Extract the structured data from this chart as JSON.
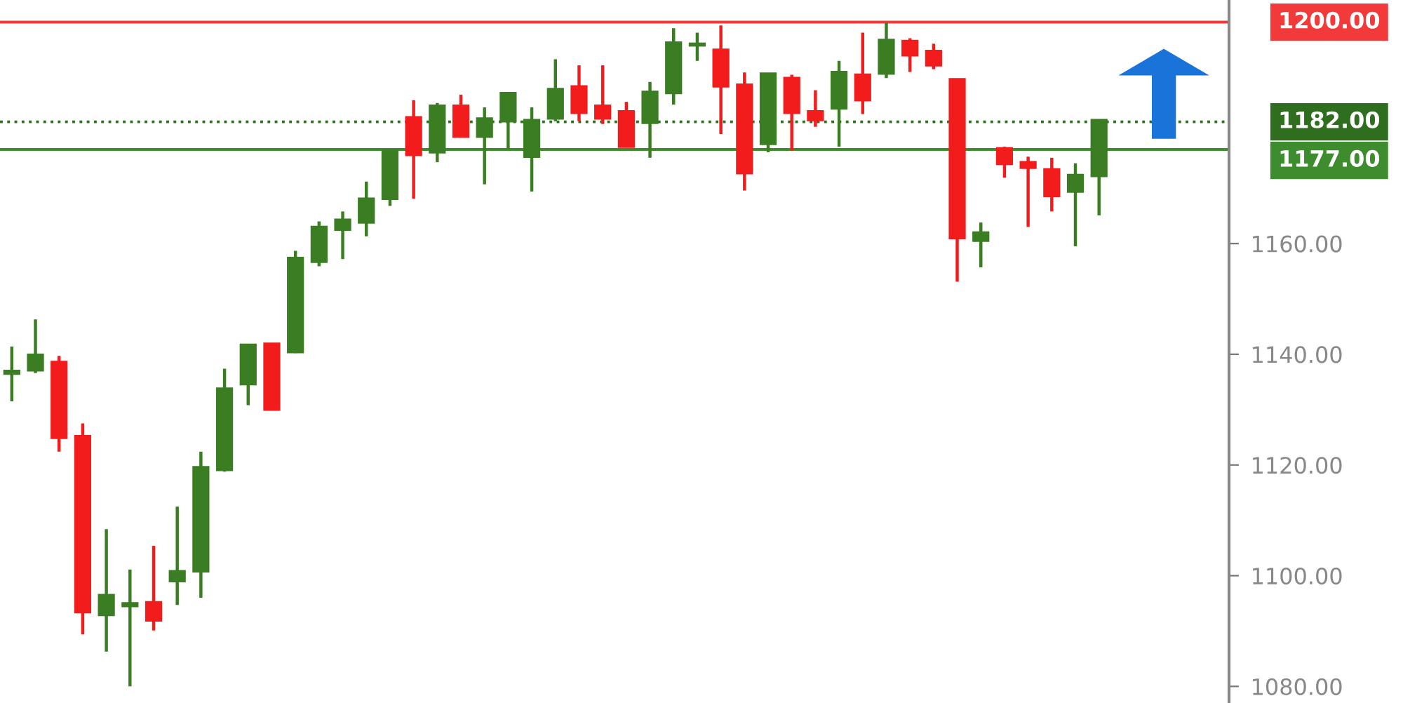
{
  "chart_data": {
    "type": "candlestick",
    "categories": [
      null,
      null,
      null,
      null,
      null,
      null,
      null,
      null,
      null,
      null,
      null,
      null,
      null,
      null,
      null,
      null,
      null,
      null,
      null,
      null,
      null,
      null,
      null,
      null,
      null,
      null,
      null,
      null,
      null,
      null,
      null,
      null,
      null,
      null,
      null,
      null,
      null,
      null,
      null,
      null,
      null,
      null,
      null,
      null,
      null,
      null,
      null,
      null,
      null,
      null,
      null,
      null
    ],
    "ohlc": [
      [
        1136.5,
        1141.4,
        1131.5,
        1137
      ],
      [
        1137.1,
        1146.3,
        1136.6,
        1139.9
      ],
      [
        1138.6,
        1139.7,
        1122.4,
        1124.9
      ],
      [
        1125.2,
        1127.5,
        1089.4,
        1093.4
      ],
      [
        1092.9,
        1108.4,
        1086.3,
        1096.5
      ],
      [
        1094.5,
        1101.1,
        1080.0,
        1095
      ],
      [
        1095.2,
        1105.4,
        1090.1,
        1091.9
      ],
      [
        1099.0,
        1112.5,
        1094.7,
        1100.8
      ],
      [
        1100.8,
        1122.4,
        1096.0,
        1119.6
      ],
      [
        1119.1,
        1137.4,
        1118.8,
        1133.8
      ],
      [
        1134.6,
        1141.9,
        1130.8,
        1141.7
      ],
      [
        1141.9,
        1141.9,
        1130.0,
        1130.0
      ],
      [
        1140.4,
        1158.7,
        1140.2,
        1157.4
      ],
      [
        1156.7,
        1164.0,
        1155.9,
        1163.0
      ],
      [
        1162.5,
        1165.8,
        1157.2,
        1164.3
      ],
      [
        1163.8,
        1171.2,
        1161.3,
        1168.1
      ],
      [
        1168.1,
        1177.0,
        1166.8,
        1176.8
      ],
      [
        1182.8,
        1185.9,
        1168.1,
        1176.0
      ],
      [
        1176.5,
        1185.4,
        1174.7,
        1184.9
      ],
      [
        1184.9,
        1186.9,
        1179.3,
        1179.3
      ],
      [
        1179.3,
        1184.6,
        1170.7,
        1182.6
      ],
      [
        1182.1,
        1187.2,
        1177.0,
        1187.2
      ],
      [
        1175.7,
        1184.6,
        1169.4,
        1182.3
      ],
      [
        1182.6,
        1193.3,
        1182.1,
        1187.9
      ],
      [
        1188.4,
        1192.2,
        1182.1,
        1183.6
      ],
      [
        1184.9,
        1192.2,
        1181.6,
        1182.6
      ],
      [
        1183.9,
        1185.6,
        1177.5,
        1177.5
      ],
      [
        1181.8,
        1189.2,
        1175.5,
        1187.4
      ],
      [
        1187.2,
        1198.9,
        1185.1,
        1196.3
      ],
      [
        1195.8,
        1198.1,
        1193.0,
        1196.1
      ],
      [
        1195.0,
        1199.4,
        1179.8,
        1188.4
      ],
      [
        1188.7,
        1190.9,
        1169.6,
        1172.7
      ],
      [
        1178.0,
        1190.7,
        1176.5,
        1190.7
      ],
      [
        1189.9,
        1190.5,
        1176.8,
        1183.6
      ],
      [
        1183.9,
        1187.7,
        1181.1,
        1182.3
      ],
      [
        1184.4,
        1193.0,
        1177.5,
        1191.0
      ],
      [
        1190.5,
        1198.1,
        1183.4,
        1185.9
      ],
      [
        1190.7,
        1199.9,
        1189.9,
        1196.8
      ],
      [
        1196.6,
        1197.1,
        1191.0,
        1194.0
      ],
      [
        1194.8,
        1196.1,
        1191.5,
        1192.2
      ],
      [
        1189.7,
        1189.7,
        1153.1,
        1161.0
      ],
      [
        1160.5,
        1163.8,
        1155.7,
        1162.0
      ],
      [
        1177.2,
        1177.5,
        1171.9,
        1174.4
      ],
      [
        1174.7,
        1175.7,
        1163.0,
        1173.7
      ],
      [
        1173.4,
        1175.5,
        1165.8,
        1168.6
      ],
      [
        1169.4,
        1174.5,
        1159.5,
        1172.4
      ],
      [
        1172.2,
        1182.3,
        1165.1,
        1182.3
      ],
      null,
      null,
      null,
      null,
      null
    ],
    "colors": [
      "#3b7d23",
      "#3b7d23",
      "#f21c1c",
      "#f21c1c",
      "#3b7d23",
      "#3b7d23",
      "#f21c1c",
      "#3b7d23",
      "#3b7d23",
      "#3b7d23",
      "#3b7d23",
      "#f21c1c",
      "#3b7d23",
      "#3b7d23",
      "#3b7d23",
      "#3b7d23",
      "#3b7d23",
      "#f21c1c",
      "#3b7d23",
      "#f21c1c",
      "#3b7d23",
      "#3b7d23",
      "#3b7d23",
      "#3b7d23",
      "#f21c1c",
      "#f21c1c",
      "#f21c1c",
      "#3b7d23",
      "#3b7d23",
      "#3b7d23",
      "#f21c1c",
      "#f21c1c",
      "#3b7d23",
      "#f21c1c",
      "#f21c1c",
      "#3b7d23",
      "#f21c1c",
      "#3b7d23",
      "#f21c1c",
      "#f21c1c",
      "#f21c1c",
      "#3b7d23",
      "#f21c1c",
      "#f21c1c",
      "#f21c1c",
      "#3b7d23",
      "#3b7d23",
      null,
      null,
      null,
      null,
      null
    ],
    "ylim": [
      1077,
      1204
    ],
    "yticks": [
      {
        "value": 1080,
        "label": "1080.00"
      },
      {
        "value": 1100,
        "label": "1100.00"
      },
      {
        "value": 1120,
        "label": "1120.00"
      },
      {
        "value": 1140,
        "label": "1140.00"
      },
      {
        "value": 1160,
        "label": "1160.00"
      }
    ],
    "ref_lines": [
      {
        "axis": "y",
        "value": 1200,
        "label": "1200.00",
        "color": "#f23a3a",
        "line_style": "solid"
      },
      {
        "axis": "y",
        "value": 1182,
        "label": "1182.00",
        "color": "#2e6e1e",
        "line_style": "dotted"
      },
      {
        "axis": "y",
        "value": 1177,
        "label": "1177.00",
        "color": "#3d8c2e",
        "line_style": "solid"
      }
    ],
    "grid": false,
    "legend": false
  }
}
